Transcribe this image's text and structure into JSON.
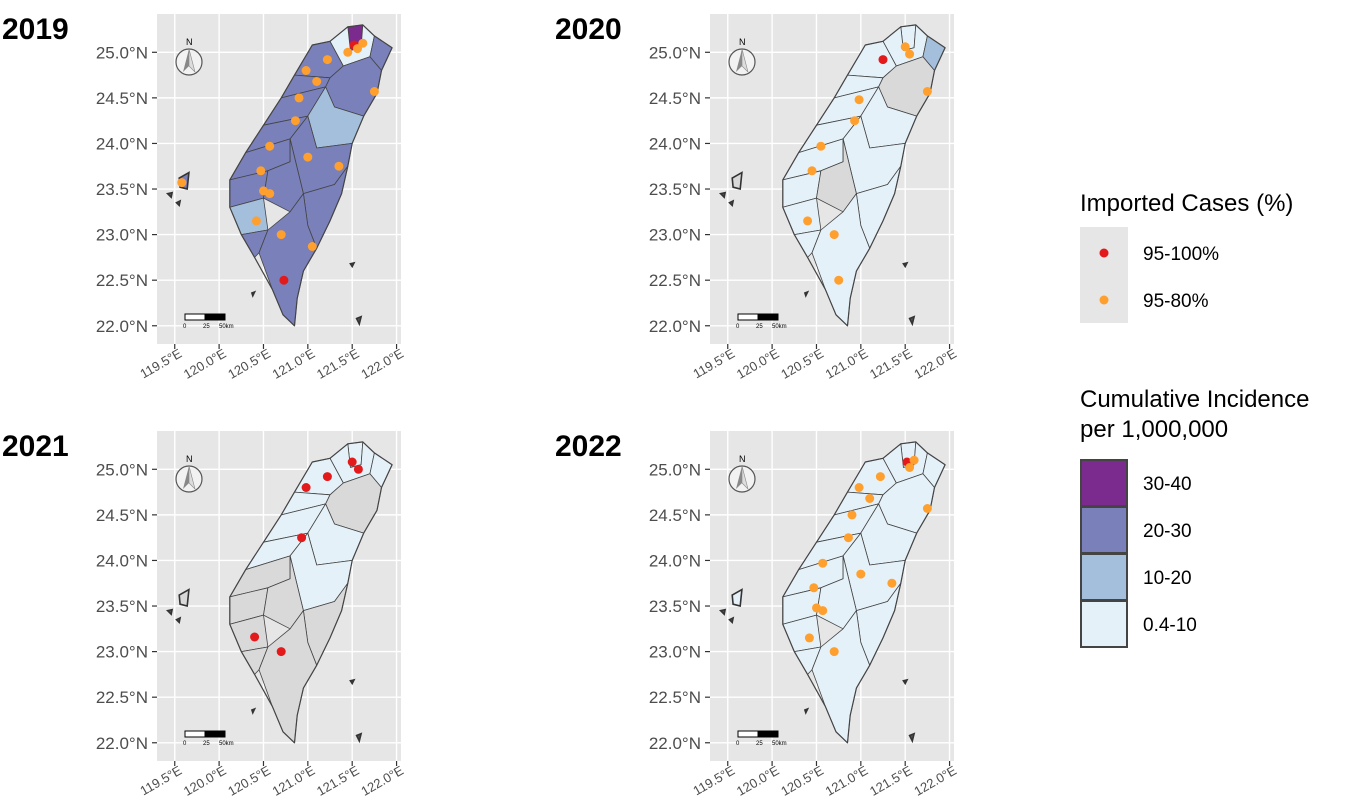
{
  "panels": [
    {
      "title": "2019",
      "fills": [
        "Q4",
        "Q1",
        "Q3",
        "Q3",
        "Q3",
        "Q3",
        "Q3",
        "Q3",
        "Q3",
        "Q2",
        "Q3",
        "Q3",
        "Q2",
        "Q3",
        "Q3",
        "Q3"
      ],
      "island_fill": "Q3",
      "points": [
        {
          "lon": 121.52,
          "lat": 25.08,
          "cat": "red"
        },
        {
          "lon": 121.56,
          "lat": 25.04,
          "cat": "orange"
        },
        {
          "lon": 121.45,
          "lat": 25.0,
          "cat": "orange"
        },
        {
          "lon": 121.62,
          "lat": 25.1,
          "cat": "orange"
        },
        {
          "lon": 121.22,
          "lat": 24.92,
          "cat": "orange"
        },
        {
          "lon": 120.98,
          "lat": 24.8,
          "cat": "orange"
        },
        {
          "lon": 121.1,
          "lat": 24.68,
          "cat": "orange"
        },
        {
          "lon": 120.9,
          "lat": 24.5,
          "cat": "orange"
        },
        {
          "lon": 121.75,
          "lat": 24.57,
          "cat": "orange"
        },
        {
          "lon": 120.86,
          "lat": 24.25,
          "cat": "orange"
        },
        {
          "lon": 120.57,
          "lat": 23.97,
          "cat": "orange"
        },
        {
          "lon": 121.0,
          "lat": 23.85,
          "cat": "orange"
        },
        {
          "lon": 121.35,
          "lat": 23.75,
          "cat": "orange"
        },
        {
          "lon": 120.47,
          "lat": 23.7,
          "cat": "orange"
        },
        {
          "lon": 120.5,
          "lat": 23.48,
          "cat": "orange"
        },
        {
          "lon": 120.57,
          "lat": 23.45,
          "cat": "orange"
        },
        {
          "lon": 120.42,
          "lat": 23.15,
          "cat": "orange"
        },
        {
          "lon": 120.7,
          "lat": 23.0,
          "cat": "orange"
        },
        {
          "lon": 121.05,
          "lat": 22.87,
          "cat": "orange"
        },
        {
          "lon": 120.73,
          "lat": 22.5,
          "cat": "red"
        },
        {
          "lon": 119.58,
          "lat": 23.57,
          "cat": "orange"
        }
      ]
    },
    {
      "title": "2020",
      "fills": [
        "Q1",
        "Q1",
        "Q2",
        "Q1",
        "Q1",
        "Q1",
        "Q1",
        "Q1",
        "Q1",
        "Q1",
        "Q1",
        "Q0",
        "Q1",
        "Q1",
        "Q0",
        "Q1"
      ],
      "island_fill": "Q0",
      "points": [
        {
          "lon": 121.25,
          "lat": 24.92,
          "cat": "red"
        },
        {
          "lon": 121.5,
          "lat": 25.06,
          "cat": "orange"
        },
        {
          "lon": 121.55,
          "lat": 24.98,
          "cat": "orange"
        },
        {
          "lon": 120.98,
          "lat": 24.48,
          "cat": "orange"
        },
        {
          "lon": 121.75,
          "lat": 24.57,
          "cat": "orange"
        },
        {
          "lon": 120.93,
          "lat": 24.25,
          "cat": "orange"
        },
        {
          "lon": 120.55,
          "lat": 23.97,
          "cat": "orange"
        },
        {
          "lon": 120.45,
          "lat": 23.7,
          "cat": "orange"
        },
        {
          "lon": 120.4,
          "lat": 23.15,
          "cat": "orange"
        },
        {
          "lon": 120.7,
          "lat": 23.0,
          "cat": "orange"
        },
        {
          "lon": 120.75,
          "lat": 22.5,
          "cat": "orange"
        }
      ]
    },
    {
      "title": "2021",
      "fills": [
        "Q1",
        "Q1",
        "Q1",
        "Q1",
        "Q1",
        "Q1",
        "Q1",
        "Q0",
        "Q0",
        "Q0",
        "Q0",
        "Q0",
        "Q1",
        "Q1",
        "Q0",
        "Q0"
      ],
      "island_fill": "Q0",
      "points": [
        {
          "lon": 121.5,
          "lat": 25.08,
          "cat": "red"
        },
        {
          "lon": 121.57,
          "lat": 25.0,
          "cat": "red"
        },
        {
          "lon": 121.22,
          "lat": 24.92,
          "cat": "red"
        },
        {
          "lon": 120.98,
          "lat": 24.8,
          "cat": "red"
        },
        {
          "lon": 120.93,
          "lat": 24.25,
          "cat": "red"
        },
        {
          "lon": 120.4,
          "lat": 23.16,
          "cat": "red"
        },
        {
          "lon": 120.7,
          "lat": 23.0,
          "cat": "red"
        }
      ]
    },
    {
      "title": "2022",
      "fills": [
        "Q1",
        "Q1",
        "Q1",
        "Q1",
        "Q1",
        "Q1",
        "Q1",
        "Q1",
        "Q1",
        "Q1",
        "Q1",
        "Q1",
        "Q1",
        "Q1",
        "Q1",
        "Q1"
      ],
      "island_fill": "Q1",
      "points": [
        {
          "lon": 121.52,
          "lat": 25.08,
          "cat": "red"
        },
        {
          "lon": 121.6,
          "lat": 25.1,
          "cat": "orange"
        },
        {
          "lon": 121.55,
          "lat": 25.02,
          "cat": "orange"
        },
        {
          "lon": 121.22,
          "lat": 24.92,
          "cat": "orange"
        },
        {
          "lon": 120.98,
          "lat": 24.8,
          "cat": "orange"
        },
        {
          "lon": 121.1,
          "lat": 24.68,
          "cat": "orange"
        },
        {
          "lon": 120.9,
          "lat": 24.5,
          "cat": "orange"
        },
        {
          "lon": 121.75,
          "lat": 24.57,
          "cat": "orange"
        },
        {
          "lon": 120.86,
          "lat": 24.25,
          "cat": "orange"
        },
        {
          "lon": 120.57,
          "lat": 23.97,
          "cat": "orange"
        },
        {
          "lon": 121.0,
          "lat": 23.85,
          "cat": "orange"
        },
        {
          "lon": 121.35,
          "lat": 23.75,
          "cat": "orange"
        },
        {
          "lon": 120.47,
          "lat": 23.7,
          "cat": "orange"
        },
        {
          "lon": 120.5,
          "lat": 23.48,
          "cat": "orange"
        },
        {
          "lon": 120.57,
          "lat": 23.45,
          "cat": "orange"
        },
        {
          "lon": 120.42,
          "lat": 23.15,
          "cat": "orange"
        },
        {
          "lon": 120.7,
          "lat": 23.0,
          "cat": "orange"
        }
      ]
    }
  ],
  "axes": {
    "y_ticks": [
      25.0,
      24.5,
      24.0,
      23.5,
      23.0,
      22.5,
      22.0
    ],
    "y_labels": [
      "25.0°N",
      "24.5°N",
      "24.0°N",
      "23.5°N",
      "23.0°N",
      "22.5°N",
      "22.0°N"
    ],
    "x_ticks": [
      119.5,
      120.0,
      120.5,
      121.0,
      121.5,
      122.0
    ],
    "x_labels": [
      "119.5°E",
      "120.0°E",
      "120.5°E",
      "121.0°E",
      "121.5°E",
      "122.0°E"
    ]
  },
  "scalebar": {
    "labels": [
      "0",
      "25",
      "50km"
    ]
  },
  "north_label": "N",
  "legend": {
    "points_title": "Imported Cases (%)",
    "points": [
      {
        "key": "red",
        "label": "95-100%",
        "color": "#e31a1c"
      },
      {
        "key": "orange",
        "label": "95-80%",
        "color": "#ff9f2e"
      }
    ],
    "fill_title_line1": "Cumulative Incidence",
    "fill_title_line2": "per 1,000,000",
    "fills": [
      {
        "key": "Q4",
        "label": "30-40",
        "color": "#7b2a8e"
      },
      {
        "key": "Q3",
        "label": "20-30",
        "color": "#7a80ba"
      },
      {
        "key": "Q2",
        "label": "10-20",
        "color": "#a3bfdb"
      },
      {
        "key": "Q1",
        "label": "0.4-10",
        "color": "#e5f1f8"
      }
    ],
    "fill_colors_extra": {
      "Q0": "#d9d9d9"
    }
  },
  "colors": {
    "panel_bg": "#e6e6e6",
    "grid": "#ffffff",
    "border": "#444444"
  }
}
